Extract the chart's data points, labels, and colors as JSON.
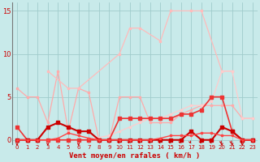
{
  "bg_color": "#c8eaea",
  "grid_color": "#a0cccc",
  "xlabel": "Vent moyen/en rafales ( km/h )",
  "xlabel_color": "#cc0000",
  "xlabel_fontsize": 6.5,
  "tick_color": "#cc0000",
  "ylim": [
    -0.5,
    16
  ],
  "xlim": [
    -0.5,
    23.5
  ],
  "yticks": [
    0,
    5,
    10,
    15
  ],
  "xticks": [
    0,
    1,
    2,
    3,
    4,
    5,
    6,
    7,
    8,
    9,
    10,
    11,
    12,
    13,
    14,
    15,
    16,
    17,
    18,
    19,
    20,
    21,
    22,
    23
  ],
  "series": [
    {
      "x": [
        0,
        1,
        2,
        3,
        4,
        5,
        6,
        7,
        8,
        9,
        10,
        11,
        12,
        13,
        14,
        15,
        16,
        17,
        18,
        19,
        20,
        21,
        22,
        23
      ],
      "y": [
        6,
        5,
        5,
        2,
        8,
        1,
        6,
        5.5,
        0,
        0,
        5,
        5,
        5,
        2,
        2,
        2,
        3,
        3.5,
        4,
        4,
        4,
        4,
        2.5,
        2.5
      ],
      "color": "#ffaaaa",
      "lw": 0.9,
      "ms": 2.0
    },
    {
      "x": [
        3,
        5,
        6,
        10,
        11,
        12,
        14,
        15,
        17,
        18,
        20,
        21
      ],
      "y": [
        8,
        6,
        6,
        10,
        13,
        13,
        11.5,
        15,
        15,
        15,
        8,
        8
      ],
      "color": "#ffbbbb",
      "lw": 0.9,
      "ms": 2.0
    },
    {
      "x": [
        0,
        1,
        2,
        3,
        4,
        5,
        6,
        7,
        8,
        9,
        10,
        11,
        12,
        13,
        14,
        15,
        16,
        17,
        18,
        19,
        20,
        21,
        22,
        23
      ],
      "y": [
        0,
        0,
        0,
        0,
        0,
        0,
        0,
        0,
        0.3,
        0.5,
        1,
        1.5,
        2,
        2.5,
        2.5,
        3,
        3.5,
        4,
        4,
        4.5,
        8,
        8,
        2.5,
        2.5
      ],
      "color": "#ffcccc",
      "lw": 0.9,
      "ms": 2.0
    },
    {
      "x": [
        0,
        1,
        2,
        3,
        4,
        5,
        6,
        7,
        8,
        9,
        10,
        11,
        12,
        13,
        14,
        15,
        16,
        17,
        18,
        19,
        20,
        21,
        22,
        23
      ],
      "y": [
        1.5,
        0,
        0,
        0,
        0,
        0,
        0,
        0,
        0,
        0,
        2.5,
        2.5,
        2.5,
        2.5,
        2.5,
        2.5,
        3,
        3,
        3.5,
        5,
        5,
        1,
        0,
        0
      ],
      "color": "#ee3333",
      "lw": 1.2,
      "ms": 2.5
    },
    {
      "x": [
        0,
        1,
        2,
        3,
        4,
        5,
        6,
        7,
        8,
        9,
        10,
        11,
        12,
        13,
        14,
        15,
        16,
        17,
        18,
        19,
        20,
        21,
        22,
        23
      ],
      "y": [
        0,
        0,
        0,
        1.5,
        2,
        1.5,
        1,
        1,
        0,
        0,
        0,
        0,
        0,
        0,
        0,
        0,
        0,
        1,
        0,
        0,
        1.5,
        1,
        0,
        0
      ],
      "color": "#cc0000",
      "lw": 1.5,
      "ms": 2.5
    },
    {
      "x": [
        0,
        1,
        2,
        3,
        4,
        5,
        6,
        7,
        8,
        9,
        10,
        11,
        12,
        13,
        14,
        15,
        16,
        17,
        18,
        19,
        20,
        21,
        22,
        23
      ],
      "y": [
        0,
        0,
        0,
        0,
        0.2,
        0.8,
        0.5,
        0.2,
        0,
        0,
        0,
        0,
        0,
        0,
        0.2,
        0.5,
        0.5,
        0.5,
        0.8,
        0.8,
        0.5,
        0.5,
        0,
        0
      ],
      "color": "#ff4444",
      "lw": 1.0,
      "ms": 2.0
    }
  ],
  "arrow_xs_down": [
    0,
    3,
    6,
    10,
    11,
    12,
    13,
    14,
    15,
    16,
    17,
    18,
    19,
    21,
    22
  ],
  "arrow_xs_curl": [
    10,
    11,
    12,
    13,
    14,
    15,
    16,
    17,
    18,
    19
  ]
}
